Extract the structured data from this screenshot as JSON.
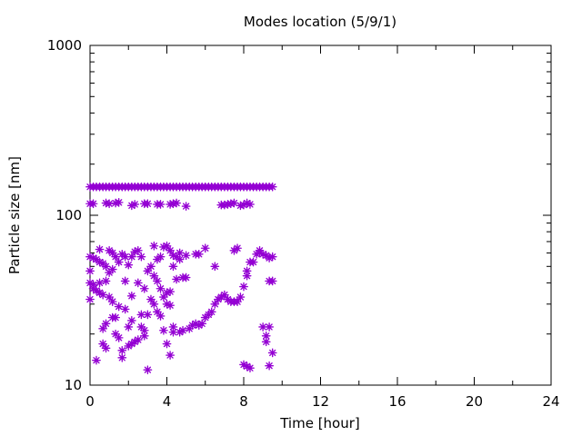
{
  "chart_data": {
    "type": "scatter",
    "title": "Modes location (5/9/1)",
    "xlabel": "Time [hour]",
    "ylabel": "Particle size [nm]",
    "xlim": [
      0,
      24
    ],
    "ylim": [
      10,
      1000
    ],
    "y_scale": "log",
    "x_ticks": [
      0,
      4,
      8,
      12,
      16,
      20,
      24
    ],
    "x_tick_labels": [
      "0",
      "4",
      "8",
      "12",
      "16",
      "20",
      "24"
    ],
    "y_ticks": [
      10,
      100,
      1000
    ],
    "y_tick_labels": [
      "10",
      "100",
      "1000"
    ],
    "grid": false,
    "legend": "none",
    "marker": "star",
    "series": [
      {
        "color": "#9400d3",
        "points": [
          [
            0.0,
            147.0
          ],
          [
            0.17,
            147.0
          ],
          [
            0.33,
            147.0
          ],
          [
            0.5,
            147.0
          ],
          [
            0.67,
            147.0
          ],
          [
            0.83,
            147.0
          ],
          [
            1.0,
            147.0
          ],
          [
            1.17,
            147.0
          ],
          [
            1.33,
            147.0
          ],
          [
            1.5,
            147.0
          ],
          [
            1.67,
            147.0
          ],
          [
            1.83,
            147.0
          ],
          [
            2.0,
            147.0
          ],
          [
            2.17,
            147.0
          ],
          [
            2.33,
            147.0
          ],
          [
            2.5,
            147.0
          ],
          [
            2.67,
            147.0
          ],
          [
            2.83,
            147.0
          ],
          [
            3.0,
            147.0
          ],
          [
            3.17,
            147.0
          ],
          [
            3.33,
            147.0
          ],
          [
            3.5,
            147.0
          ],
          [
            3.67,
            147.0
          ],
          [
            3.83,
            147.0
          ],
          [
            4.0,
            147.0
          ],
          [
            4.17,
            147.0
          ],
          [
            4.33,
            147.0
          ],
          [
            4.5,
            147.0
          ],
          [
            4.67,
            147.0
          ],
          [
            4.83,
            147.0
          ],
          [
            5.0,
            147.0
          ],
          [
            5.17,
            147.0
          ],
          [
            5.33,
            147.0
          ],
          [
            5.5,
            147.0
          ],
          [
            5.67,
            147.0
          ],
          [
            5.83,
            147.0
          ],
          [
            6.0,
            147.0
          ],
          [
            6.17,
            147.0
          ],
          [
            6.33,
            147.0
          ],
          [
            6.5,
            147.0
          ],
          [
            6.67,
            147.0
          ],
          [
            6.83,
            147.0
          ],
          [
            7.0,
            147.0
          ],
          [
            7.17,
            147.0
          ],
          [
            7.33,
            147.0
          ],
          [
            7.5,
            147.0
          ],
          [
            7.67,
            147.0
          ],
          [
            7.83,
            147.0
          ],
          [
            8.0,
            147.0
          ],
          [
            8.17,
            147.0
          ],
          [
            8.33,
            147.0
          ],
          [
            8.5,
            147.0
          ],
          [
            8.67,
            147.0
          ],
          [
            8.83,
            147.0
          ],
          [
            9.0,
            147.0
          ],
          [
            9.17,
            147.0
          ],
          [
            9.33,
            147.0
          ],
          [
            9.5,
            147.0
          ],
          [
            0.0,
            117.0
          ],
          [
            0.17,
            117.0
          ],
          [
            0.83,
            118.0
          ],
          [
            1.0,
            117.0
          ],
          [
            1.33,
            118.0
          ],
          [
            1.5,
            119.0
          ],
          [
            2.17,
            114.0
          ],
          [
            2.33,
            116.0
          ],
          [
            2.83,
            117.0
          ],
          [
            3.0,
            117.0
          ],
          [
            3.5,
            116.0
          ],
          [
            3.67,
            116.0
          ],
          [
            4.17,
            116.0
          ],
          [
            4.33,
            117.0
          ],
          [
            4.5,
            118.0
          ],
          [
            5.0,
            113.0
          ],
          [
            6.83,
            115.0
          ],
          [
            7.0,
            115.0
          ],
          [
            7.17,
            116.0
          ],
          [
            7.33,
            117.0
          ],
          [
            7.5,
            118.0
          ],
          [
            7.83,
            114.0
          ],
          [
            8.0,
            115.0
          ],
          [
            8.17,
            118.0
          ],
          [
            8.33,
            116.0
          ],
          [
            0.0,
            57.0
          ],
          [
            0.0,
            47.0
          ],
          [
            0.0,
            40.0
          ],
          [
            0.0,
            32.0
          ],
          [
            0.17,
            56.0
          ],
          [
            0.17,
            37.0
          ],
          [
            0.17,
            39.0
          ],
          [
            0.33,
            55.0
          ],
          [
            0.33,
            36.0
          ],
          [
            0.33,
            14.0
          ],
          [
            0.5,
            63.0
          ],
          [
            0.5,
            53.0
          ],
          [
            0.5,
            35.0
          ],
          [
            0.5,
            40.0
          ],
          [
            0.67,
            52.0
          ],
          [
            0.67,
            21.5
          ],
          [
            0.67,
            17.5
          ],
          [
            0.67,
            34.0
          ],
          [
            0.83,
            50.0
          ],
          [
            0.83,
            41.0
          ],
          [
            0.83,
            23.0
          ],
          [
            0.83,
            16.5
          ],
          [
            1.0,
            62.0
          ],
          [
            1.0,
            46.0
          ],
          [
            1.0,
            33.0
          ],
          [
            1.17,
            60.0
          ],
          [
            1.17,
            48.0
          ],
          [
            1.17,
            31.0
          ],
          [
            1.17,
            25.0
          ],
          [
            1.33,
            57.0
          ],
          [
            1.33,
            20.0
          ],
          [
            1.33,
            25.0
          ],
          [
            1.5,
            53.0
          ],
          [
            1.5,
            29.0
          ],
          [
            1.5,
            19.0
          ],
          [
            1.67,
            59.0
          ],
          [
            1.67,
            16.0
          ],
          [
            1.67,
            14.5
          ],
          [
            1.83,
            57.0
          ],
          [
            1.83,
            41.0
          ],
          [
            1.83,
            28.0
          ],
          [
            2.0,
            51.0
          ],
          [
            2.0,
            22.0
          ],
          [
            2.0,
            17.0
          ],
          [
            2.17,
            57.0
          ],
          [
            2.17,
            33.5
          ],
          [
            2.17,
            24.0
          ],
          [
            2.17,
            17.5
          ],
          [
            2.33,
            61.0
          ],
          [
            2.33,
            18.0
          ],
          [
            2.5,
            62.0
          ],
          [
            2.5,
            40.0
          ],
          [
            2.5,
            18.5
          ],
          [
            2.67,
            57.0
          ],
          [
            2.67,
            26.0
          ],
          [
            2.67,
            22.0
          ],
          [
            2.83,
            37.0
          ],
          [
            2.83,
            21.0
          ],
          [
            2.83,
            19.5
          ],
          [
            3.0,
            47.0
          ],
          [
            3.0,
            26.0
          ],
          [
            3.0,
            12.3
          ],
          [
            3.17,
            50.0
          ],
          [
            3.17,
            32.0
          ],
          [
            3.33,
            66.0
          ],
          [
            3.33,
            44.0
          ],
          [
            3.33,
            30.0
          ],
          [
            3.5,
            55.0
          ],
          [
            3.5,
            41.0
          ],
          [
            3.5,
            27.0
          ],
          [
            3.67,
            57.0
          ],
          [
            3.67,
            37.0
          ],
          [
            3.67,
            25.5
          ],
          [
            3.83,
            65.0
          ],
          [
            3.83,
            33.0
          ],
          [
            3.83,
            21.0
          ],
          [
            4.0,
            66.0
          ],
          [
            4.0,
            35.0
          ],
          [
            4.0,
            30.0
          ],
          [
            4.0,
            17.5
          ],
          [
            4.17,
            62.0
          ],
          [
            4.17,
            35.5
          ],
          [
            4.17,
            29.5
          ],
          [
            4.17,
            15.0
          ],
          [
            4.33,
            58.0
          ],
          [
            4.33,
            50.0
          ],
          [
            4.33,
            22.0
          ],
          [
            4.33,
            20.5
          ],
          [
            4.5,
            57.0
          ],
          [
            4.5,
            42.0
          ],
          [
            4.67,
            60.0
          ],
          [
            4.67,
            55.0
          ],
          [
            4.67,
            20.5
          ],
          [
            4.83,
            43.0
          ],
          [
            4.83,
            21.0
          ],
          [
            5.0,
            58.0
          ],
          [
            5.0,
            43.0
          ],
          [
            5.17,
            21.5
          ],
          [
            5.33,
            22.5
          ],
          [
            5.5,
            59.0
          ],
          [
            5.5,
            23.0
          ],
          [
            5.67,
            59.0
          ],
          [
            5.67,
            22.5
          ],
          [
            5.83,
            23.0
          ],
          [
            6.0,
            64.0
          ],
          [
            6.0,
            25.0
          ],
          [
            6.17,
            26.0
          ],
          [
            6.33,
            27.0
          ],
          [
            6.5,
            50.0
          ],
          [
            6.5,
            30.0
          ],
          [
            6.67,
            32.0
          ],
          [
            6.83,
            33.0
          ],
          [
            7.0,
            34.0
          ],
          [
            7.17,
            32.0
          ],
          [
            7.33,
            31.0
          ],
          [
            7.5,
            31.0
          ],
          [
            7.5,
            62.0
          ],
          [
            7.67,
            64.0
          ],
          [
            7.67,
            31.0
          ],
          [
            7.83,
            33.0
          ],
          [
            8.0,
            38.0
          ],
          [
            8.0,
            13.2
          ],
          [
            8.17,
            44.0
          ],
          [
            8.17,
            47.0
          ],
          [
            8.17,
            12.9
          ],
          [
            8.33,
            53.0
          ],
          [
            8.33,
            12.6
          ],
          [
            8.5,
            53.0
          ],
          [
            8.67,
            59.0
          ],
          [
            8.83,
            60.0
          ],
          [
            8.83,
            62.0
          ],
          [
            9.0,
            59.0
          ],
          [
            9.0,
            22.0
          ],
          [
            9.17,
            58.0
          ],
          [
            9.17,
            19.5
          ],
          [
            9.17,
            18.0
          ],
          [
            9.33,
            56.0
          ],
          [
            9.33,
            41.0
          ],
          [
            9.33,
            22.0
          ],
          [
            9.33,
            13.0
          ],
          [
            9.5,
            57.0
          ],
          [
            9.5,
            41.0
          ],
          [
            9.5,
            15.5
          ]
        ]
      }
    ]
  }
}
